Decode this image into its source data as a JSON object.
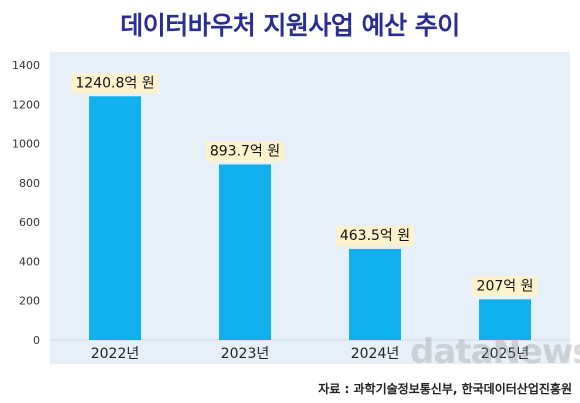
{
  "chart_data": {
    "type": "bar",
    "title": "데이터바우처 지원사업 예산 추이",
    "categories": [
      "2022년",
      "2023년",
      "2024년",
      "2025년"
    ],
    "values": [
      1240.8,
      893.7,
      463.5,
      207
    ],
    "data_labels": [
      "1240.8억 원",
      "893.7억 원",
      "463.5억 원",
      "207억 원"
    ],
    "ylim": [
      0,
      1400
    ],
    "yticks": [
      0,
      200,
      400,
      600,
      800,
      1000,
      1200,
      1400
    ],
    "grid": false,
    "legend": "none",
    "bar_color": "#0fb0ec",
    "label_bg_color": "#fdf2cc"
  },
  "watermark": "dataNews",
  "source": "자료 : 과학기술정보통신부, 한국데이터산업진흥원",
  "colors": {
    "title": "#2a2e93",
    "plot_background": "#e7f0f8"
  }
}
